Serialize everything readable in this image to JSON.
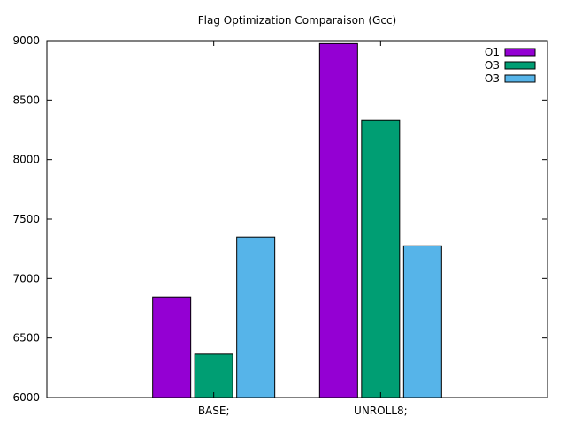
{
  "chart_data": {
    "type": "bar",
    "title": "Flag Optimization Comparaison (Gcc)",
    "xlabel": "",
    "ylabel": "",
    "categories": [
      "BASE;",
      "UNROLL8;"
    ],
    "series": [
      {
        "name": "O1",
        "values": [
          6845,
          8975
        ],
        "color": "#9400d3"
      },
      {
        "name": "O3",
        "values": [
          6365,
          8330
        ],
        "color": "#009e73"
      },
      {
        "name": "O3",
        "values": [
          7350,
          7275
        ],
        "color": "#56b4e9"
      }
    ],
    "ylim": [
      6000,
      9000
    ],
    "yticks": [
      6000,
      6500,
      7000,
      7500,
      8000,
      8500,
      9000
    ],
    "legend": "top-right",
    "grid": false
  }
}
